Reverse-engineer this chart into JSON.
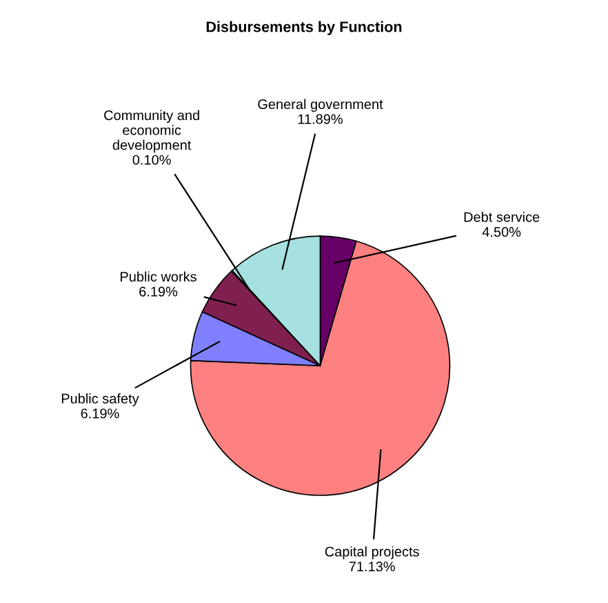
{
  "chart_data": {
    "type": "pie",
    "title": "Disbursements by Function",
    "categories": [
      "Debt service",
      "Capital projects",
      "Public safety",
      "Public works",
      "Community and\neconomic\ndevelopment",
      "General government"
    ],
    "values": [
      4.5,
      71.13,
      6.19,
      6.19,
      0.1,
      11.89
    ],
    "value_labels": [
      "4.50%",
      "71.13%",
      "6.19%",
      "6.19%",
      "0.10%",
      "11.89%"
    ],
    "colors": [
      "#660066",
      "#ff8080",
      "#8080ff",
      "#802050",
      "#ffffcc",
      "#a6e0e0"
    ],
    "legend": false
  }
}
